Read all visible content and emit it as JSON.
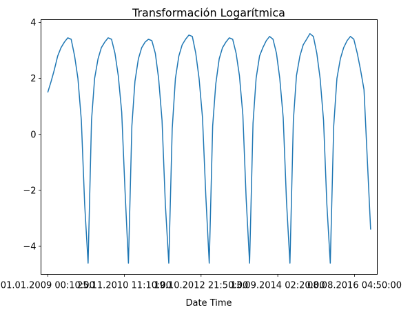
{
  "chart_data": {
    "type": "line",
    "title": "Transformación Logarítmica",
    "xlabel": "Date Time",
    "ylabel": "",
    "xlim": [
      "2008-11-01",
      "2017-03-01"
    ],
    "ylim": [
      -5,
      4.1
    ],
    "grid": false,
    "legend": "none",
    "x_start": "2009-01-01",
    "x_end": "2016-12-31",
    "x_ticks": [
      {
        "value": "2009-01-01",
        "label": "01.01.2009 00:10:00"
      },
      {
        "value": "2010-11-25",
        "label": "25.11.2010 11:10:00"
      },
      {
        "value": "2012-10-19",
        "label": "19.10.2012 21:50:00"
      },
      {
        "value": "2014-09-13",
        "label": "13.09.2014 02:20:00"
      },
      {
        "value": "2016-08-08",
        "label": "08.08.2016 04:50:00"
      }
    ],
    "y_ticks": [
      {
        "value": -4,
        "label": "−4"
      },
      {
        "value": -2,
        "label": "−2"
      },
      {
        "value": 0,
        "label": "0"
      },
      {
        "value": 2,
        "label": "2"
      },
      {
        "value": 4,
        "label": "4"
      }
    ],
    "series": [
      {
        "color": "#1f77b4",
        "points": [
          [
            "2009-01-01",
            1.5
          ],
          [
            "2009-02-01",
            1.9
          ],
          [
            "2009-03-01",
            2.3
          ],
          [
            "2009-04-01",
            2.8
          ],
          [
            "2009-05-01",
            3.1
          ],
          [
            "2009-06-01",
            3.3
          ],
          [
            "2009-07-01",
            3.45
          ],
          [
            "2009-08-01",
            3.4
          ],
          [
            "2009-09-01",
            2.8
          ],
          [
            "2009-10-01",
            2.0
          ],
          [
            "2009-11-01",
            0.5
          ],
          [
            "2009-12-01",
            -2.5
          ],
          [
            "2010-01-01",
            -4.6
          ],
          [
            "2010-02-01",
            0.5
          ],
          [
            "2010-03-01",
            2.0
          ],
          [
            "2010-04-01",
            2.7
          ],
          [
            "2010-05-01",
            3.1
          ],
          [
            "2010-06-01",
            3.3
          ],
          [
            "2010-07-01",
            3.45
          ],
          [
            "2010-08-01",
            3.4
          ],
          [
            "2010-09-01",
            2.9
          ],
          [
            "2010-10-01",
            2.1
          ],
          [
            "2010-11-01",
            0.8
          ],
          [
            "2010-12-01",
            -2.0
          ],
          [
            "2011-01-01",
            -4.6
          ],
          [
            "2011-02-01",
            0.3
          ],
          [
            "2011-03-01",
            1.9
          ],
          [
            "2011-04-01",
            2.7
          ],
          [
            "2011-05-01",
            3.1
          ],
          [
            "2011-06-01",
            3.3
          ],
          [
            "2011-07-01",
            3.4
          ],
          [
            "2011-08-01",
            3.35
          ],
          [
            "2011-09-01",
            2.9
          ],
          [
            "2011-10-01",
            2.0
          ],
          [
            "2011-11-01",
            0.5
          ],
          [
            "2011-12-01",
            -2.5
          ],
          [
            "2012-01-01",
            -4.6
          ],
          [
            "2012-02-01",
            0.2
          ],
          [
            "2012-03-01",
            2.0
          ],
          [
            "2012-04-01",
            2.8
          ],
          [
            "2012-05-01",
            3.2
          ],
          [
            "2012-06-01",
            3.4
          ],
          [
            "2012-07-01",
            3.55
          ],
          [
            "2012-08-01",
            3.5
          ],
          [
            "2012-09-01",
            2.9
          ],
          [
            "2012-10-01",
            2.0
          ],
          [
            "2012-11-01",
            0.6
          ],
          [
            "2012-12-01",
            -2.2
          ],
          [
            "2013-01-01",
            -4.6
          ],
          [
            "2013-02-01",
            0.3
          ],
          [
            "2013-03-01",
            1.8
          ],
          [
            "2013-04-01",
            2.7
          ],
          [
            "2013-05-01",
            3.1
          ],
          [
            "2013-06-01",
            3.3
          ],
          [
            "2013-07-01",
            3.45
          ],
          [
            "2013-08-01",
            3.4
          ],
          [
            "2013-09-01",
            2.9
          ],
          [
            "2013-10-01",
            2.1
          ],
          [
            "2013-11-01",
            0.7
          ],
          [
            "2013-12-01",
            -2.3
          ],
          [
            "2014-01-01",
            -4.6
          ],
          [
            "2014-02-01",
            0.4
          ],
          [
            "2014-03-01",
            2.0
          ],
          [
            "2014-04-01",
            2.8
          ],
          [
            "2014-05-01",
            3.1
          ],
          [
            "2014-06-01",
            3.35
          ],
          [
            "2014-07-01",
            3.5
          ],
          [
            "2014-08-01",
            3.4
          ],
          [
            "2014-09-01",
            2.9
          ],
          [
            "2014-10-01",
            2.0
          ],
          [
            "2014-11-01",
            0.6
          ],
          [
            "2014-12-01",
            -2.4
          ],
          [
            "2015-01-01",
            -4.6
          ],
          [
            "2015-02-01",
            0.5
          ],
          [
            "2015-03-01",
            2.1
          ],
          [
            "2015-04-01",
            2.8
          ],
          [
            "2015-05-01",
            3.2
          ],
          [
            "2015-06-01",
            3.4
          ],
          [
            "2015-07-01",
            3.6
          ],
          [
            "2015-08-01",
            3.5
          ],
          [
            "2015-09-01",
            2.9
          ],
          [
            "2015-10-01",
            2.0
          ],
          [
            "2015-11-01",
            0.5
          ],
          [
            "2015-12-01",
            -2.5
          ],
          [
            "2016-01-01",
            -4.6
          ],
          [
            "2016-02-01",
            0.3
          ],
          [
            "2016-03-01",
            2.0
          ],
          [
            "2016-04-01",
            2.7
          ],
          [
            "2016-05-01",
            3.1
          ],
          [
            "2016-06-01",
            3.35
          ],
          [
            "2016-07-01",
            3.5
          ],
          [
            "2016-08-01",
            3.4
          ],
          [
            "2016-09-01",
            2.9
          ],
          [
            "2016-10-01",
            2.3
          ],
          [
            "2016-11-01",
            1.6
          ],
          [
            "2016-12-31",
            -3.4
          ]
        ]
      }
    ]
  }
}
